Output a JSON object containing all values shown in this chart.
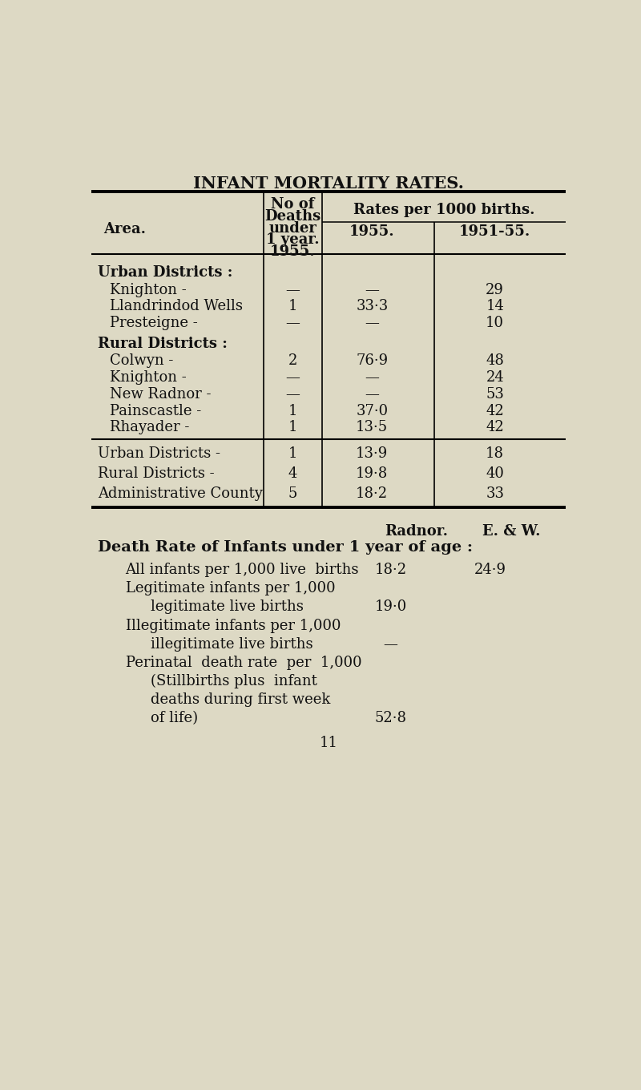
{
  "title": "INFANT MORTALITY RATES.",
  "bg_color": "#ddd9c4",
  "text_color": "#111111",
  "header_col1": "Area.",
  "header_col2": [
    "No of",
    "Deaths",
    "under",
    "1 year.",
    "1955."
  ],
  "header_col3": "Rates per 1000 births.",
  "header_col3a": "1955.",
  "header_col3b": "1951-55.",
  "section1": "Urban Districts :",
  "urban_rows": [
    {
      "area": "Knighton",
      "suffix": " -",
      "deaths": "—",
      "rate1955": "—",
      "rate5155": "29"
    },
    {
      "area": "Llandrindod Wells",
      "suffix": "",
      "deaths": "1",
      "rate1955": "33·3",
      "rate5155": "14"
    },
    {
      "area": "Presteigne",
      "suffix": " -",
      "deaths": "—",
      "rate1955": "—",
      "rate5155": "10"
    }
  ],
  "section2": "Rural Districts :",
  "rural_rows": [
    {
      "area": "Colwyn",
      "suffix": " -",
      "deaths": "2",
      "rate1955": "76·9",
      "rate5155": "48"
    },
    {
      "area": "Knighton",
      "suffix": " -",
      "deaths": "—",
      "rate1955": "—",
      "rate5155": "24"
    },
    {
      "area": "New Radnor",
      "suffix": " -",
      "deaths": "—",
      "rate1955": "—",
      "rate5155": "53"
    },
    {
      "area": "Painscastle",
      "suffix": " -",
      "deaths": "1",
      "rate1955": "37·0",
      "rate5155": "42"
    },
    {
      "area": "Rhayader",
      "suffix": " -",
      "deaths": "1",
      "rate1955": "13·5",
      "rate5155": "42"
    }
  ],
  "summary_rows": [
    {
      "area": "Urban Districts",
      "suffix": " -",
      "deaths": "1",
      "rate1955": "13·9",
      "rate5155": "18"
    },
    {
      "area": "Rural Districts",
      "suffix": " -",
      "deaths": "4",
      "rate1955": "19·8",
      "rate5155": "40"
    },
    {
      "area": "Administrative County",
      "suffix": "",
      "deaths": "5",
      "rate1955": "18·2",
      "rate5155": "33"
    }
  ],
  "bottom_header_col1": "Radnor.",
  "bottom_header_col2": "E. & W.",
  "bottom_title": "Death Rate of Infants under 1 year of age :",
  "bottom_rows": [
    {
      "label": "All infants per 1,000 live  births",
      "indent": 1,
      "val1": "18·2",
      "val2": "24·9"
    },
    {
      "label": "Legitimate infants per 1,000",
      "indent": 1,
      "val1": "",
      "val2": ""
    },
    {
      "label": "legitimate live births",
      "indent": 2,
      "val1": "19·0",
      "val2": ""
    },
    {
      "label": "Illegitimate infants per 1,000",
      "indent": 1,
      "val1": "",
      "val2": ""
    },
    {
      "label": "illegitimate live births",
      "indent": 2,
      "val1": "—",
      "val2": ""
    },
    {
      "label": "Perinatal  death rate  per  1,000",
      "indent": 1,
      "val1": "",
      "val2": ""
    },
    {
      "label": "(Stillbirths plus  infant",
      "indent": 2,
      "val1": "",
      "val2": ""
    },
    {
      "label": "deaths during first week",
      "indent": 2,
      "val1": "",
      "val2": ""
    },
    {
      "label": "of life)",
      "indent": 2,
      "val1": "52·8",
      "val2": ""
    }
  ],
  "page_number": "11"
}
